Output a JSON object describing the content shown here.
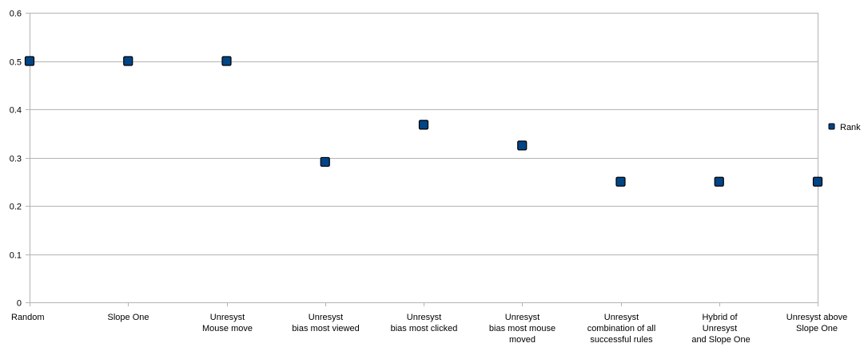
{
  "chart_data": {
    "type": "scatter",
    "title": "",
    "xlabel": "",
    "ylabel": "",
    "categories": [
      [
        "Random"
      ],
      [
        "Slope One"
      ],
      [
        "Unresyst",
        "Mouse move"
      ],
      [
        "Unresyst",
        "bias most viewed"
      ],
      [
        "Unresyst",
        "bias most clicked"
      ],
      [
        "Unresyst",
        "bias most mouse",
        "moved"
      ],
      [
        "Unresyst",
        "combination of all",
        "successful rules"
      ],
      [
        "Hybrid of",
        "Unresyst",
        " and  Slope One"
      ],
      [
        "Unresyst above",
        "Slope One"
      ]
    ],
    "series": [
      {
        "name": "Rank",
        "color": "#004586",
        "values": [
          0.5,
          0.5,
          0.5,
          0.291,
          0.368,
          0.325,
          0.25,
          0.25,
          0.25
        ]
      }
    ],
    "ylim": [
      0,
      0.6
    ],
    "yticks": [
      "0",
      "0.1",
      "0.2",
      "0.3",
      "0.4",
      "0.5",
      "0.6"
    ],
    "grid": true,
    "legend": "right"
  }
}
